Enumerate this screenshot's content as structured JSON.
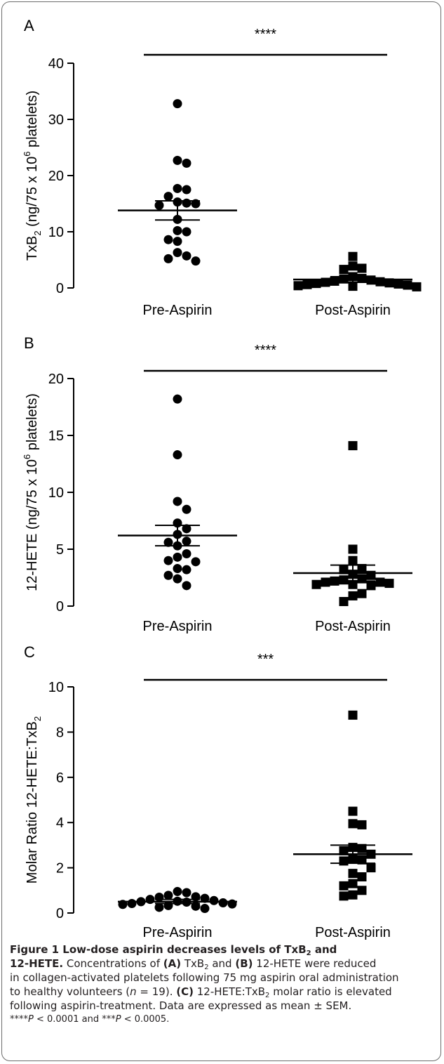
{
  "chart_data": [
    {
      "type": "scatter",
      "panel_label": "A",
      "ylabel": {
        "main": "TxB",
        "sub": "2",
        "mid": " (ng/75 x 10",
        "sup": "6",
        "end": " platelets)"
      },
      "categories": [
        "Pre-Aspirin",
        "Post-Aspirin"
      ],
      "ylim": [
        0,
        40
      ],
      "yticks": [
        0,
        10,
        20,
        30,
        40
      ],
      "significance": "****",
      "series": [
        {
          "marker": "circle",
          "mean": 13.8,
          "sem_low": 12.1,
          "sem_high": 15.5,
          "values": [
            32.8,
            22.7,
            22.2,
            17.7,
            17.5,
            16.3,
            15.3,
            15.1,
            15.0,
            14.7,
            12.2,
            10.2,
            10.0,
            8.6,
            8.3,
            6.3,
            5.7,
            5.2,
            4.8
          ]
        },
        {
          "marker": "square",
          "mean": 1.5,
          "sem_low": 1.0,
          "sem_high": 2.0,
          "values": [
            5.6,
            3.9,
            3.5,
            3.3,
            2.0,
            1.7,
            1.6,
            1.4,
            1.2,
            1.1,
            1.0,
            0.9,
            0.8,
            0.7,
            0.6,
            0.5,
            0.4,
            0.3,
            0.2
          ]
        }
      ]
    },
    {
      "type": "scatter",
      "panel_label": "B",
      "ylabel": {
        "main": "12-HETE",
        "sub": "",
        "mid": " (ng/75 x 10",
        "sup": "6",
        "end": " platelets)"
      },
      "categories": [
        "Pre-Aspirin",
        "Post-Aspirin"
      ],
      "ylim": [
        0,
        20
      ],
      "yticks": [
        0,
        5,
        10,
        15,
        20
      ],
      "significance": "****",
      "series": [
        {
          "marker": "circle",
          "mean": 6.2,
          "sem_low": 5.3,
          "sem_high": 7.1,
          "values": [
            18.2,
            13.3,
            9.2,
            8.5,
            7.3,
            6.8,
            6.3,
            5.7,
            5.6,
            5.3,
            4.6,
            4.3,
            4.0,
            3.9,
            3.3,
            3.2,
            2.7,
            2.4,
            1.8
          ]
        },
        {
          "marker": "square",
          "mean": 2.9,
          "sem_low": 2.2,
          "sem_high": 3.6,
          "values": [
            14.1,
            5.0,
            4.0,
            3.3,
            3.2,
            2.8,
            2.7,
            2.4,
            2.3,
            2.2,
            2.1,
            2.1,
            2.0,
            1.9,
            1.9,
            1.8,
            1.1,
            0.9,
            0.4
          ]
        }
      ]
    },
    {
      "type": "scatter",
      "panel_label": "C",
      "ylabel": {
        "main": "Molar Ratio 12-HETE:TxB",
        "sub": "2",
        "mid": "",
        "sup": "",
        "end": ""
      },
      "categories": [
        "Pre-Aspirin",
        "Post-Aspirin"
      ],
      "ylim": [
        0,
        10
      ],
      "yticks": [
        0,
        2,
        4,
        6,
        8,
        10
      ],
      "significance": "***",
      "series": [
        {
          "marker": "circle",
          "mean": 0.5,
          "sem_low": 0.42,
          "sem_high": 0.6,
          "values": [
            0.95,
            0.9,
            0.78,
            0.72,
            0.7,
            0.65,
            0.6,
            0.55,
            0.52,
            0.5,
            0.48,
            0.45,
            0.42,
            0.4,
            0.38,
            0.33,
            0.3,
            0.25,
            0.2
          ]
        },
        {
          "marker": "square",
          "mean": 2.6,
          "sem_low": 2.2,
          "sem_high": 3.0,
          "values": [
            8.75,
            4.5,
            3.95,
            3.9,
            2.9,
            2.85,
            2.75,
            2.6,
            2.4,
            2.35,
            2.3,
            2.0,
            1.75,
            1.6,
            1.3,
            1.2,
            1.0,
            0.8,
            0.75
          ]
        }
      ]
    }
  ],
  "caption": {
    "line1_bold_a": "Figure 1 Low-dose aspirin decreases levels of TxB",
    "line1_bold_sub": "2",
    "line1_bold_b": " and",
    "line2_bold": "12-HETE.",
    "line2_a": " Concentrations of ",
    "line2_A": "(A)",
    "line2_b": " TxB",
    "line2_sub": "2",
    "line2_c": " and ",
    "line2_B": "(B)",
    "line2_d": " 12-HETE were reduced",
    "line3": "in collagen-activated platelets following 75 mg aspirin oral administration",
    "line4_a": "to healthy volunteers (",
    "line4_n": "n",
    "line4_b": " = 19). ",
    "line4_C": "(C)",
    "line4_c": " 12-HETE:TxB",
    "line4_sub": "2",
    "line4_d": " molar ratio is elevated",
    "line5": "following aspirin-treatment. Data are expressed as mean ± SEM.",
    "line6_a": "****",
    "line6_p1": "P",
    "line6_b": " < 0.0001 and ***",
    "line6_p2": "P",
    "line6_c": " < 0.0005."
  }
}
